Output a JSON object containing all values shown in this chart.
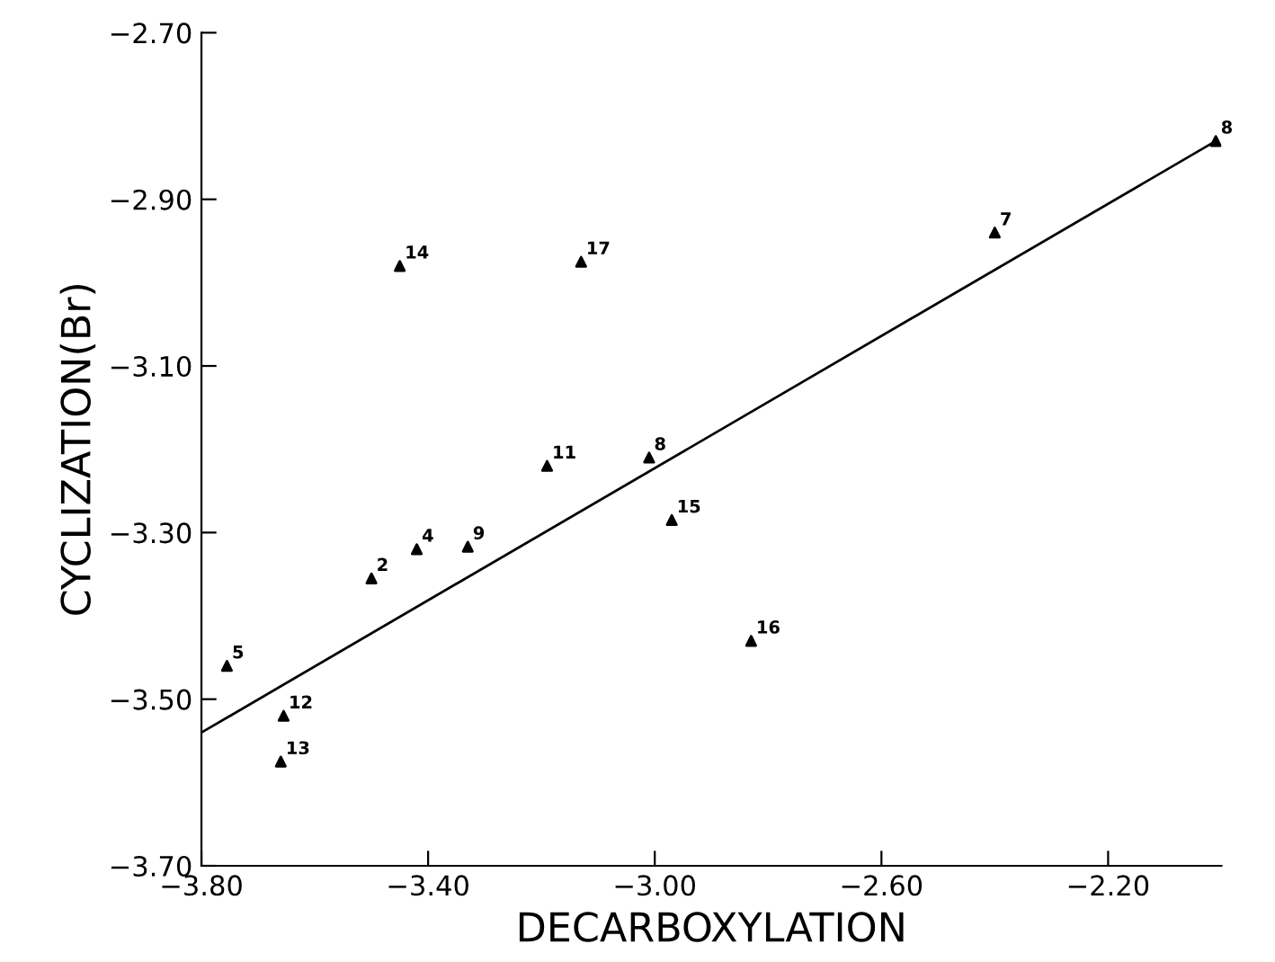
{
  "chart_data": {
    "type": "scatter",
    "xlabel": "DECARBOXYLATION",
    "ylabel": "CYCLIZATION(Br)",
    "xlim": [
      -3.8,
      -2.0
    ],
    "xticks": [
      {
        "value": -3.8,
        "label": "−3.80"
      },
      {
        "value": -3.4,
        "label": "−3.40"
      },
      {
        "value": -3.0,
        "label": "−3.00"
      },
      {
        "value": -2.6,
        "label": "−2.60"
      },
      {
        "value": -2.2,
        "label": "−2.20"
      }
    ],
    "ylim": [
      -3.7,
      -2.7
    ],
    "yticks": [
      {
        "value": -3.7,
        "label": "−3.70"
      },
      {
        "value": -3.5,
        "label": "−3.50"
      },
      {
        "value": -3.3,
        "label": "−3.30"
      },
      {
        "value": -3.1,
        "label": "−3.10"
      },
      {
        "value": -2.9,
        "label": "−2.90"
      },
      {
        "value": -2.7,
        "label": "−2.70"
      }
    ],
    "grid": false,
    "legend": false,
    "series": [
      {
        "color": "#000000",
        "marker": "triangle",
        "x": [
          -2.01,
          -2.4,
          -3.45,
          -3.13,
          -3.19,
          -3.01,
          -2.97,
          -3.33,
          -3.42,
          -3.5,
          -3.755,
          -3.655,
          -3.66,
          -2.83
        ],
        "values": [
          -2.83,
          -2.94,
          -2.98,
          -2.975,
          -3.22,
          -3.21,
          -3.285,
          -3.317,
          -3.32,
          -3.355,
          -3.46,
          -3.52,
          -3.575,
          -3.43
        ]
      },
      {
        "type": "line",
        "color": "#000000",
        "marker": "none",
        "line_style": "solid",
        "x": [
          -3.8,
          -2.01
        ],
        "values": [
          -3.54,
          -2.83
        ]
      }
    ],
    "annotations": [
      {
        "text": "8",
        "x": -2.01,
        "y": -2.83
      },
      {
        "text": "7",
        "x": -2.4,
        "y": -2.94
      },
      {
        "text": "14",
        "x": -3.45,
        "y": -2.98
      },
      {
        "text": "17",
        "x": -3.13,
        "y": -2.975
      },
      {
        "text": "11",
        "x": -3.19,
        "y": -3.22
      },
      {
        "text": "8",
        "x": -3.01,
        "y": -3.21
      },
      {
        "text": "15",
        "x": -2.97,
        "y": -3.285
      },
      {
        "text": "9",
        "x": -3.33,
        "y": -3.317
      },
      {
        "text": "4",
        "x": -3.42,
        "y": -3.32
      },
      {
        "text": "2",
        "x": -3.5,
        "y": -3.355
      },
      {
        "text": "5",
        "x": -3.755,
        "y": -3.46
      },
      {
        "text": "12",
        "x": -3.655,
        "y": -3.52
      },
      {
        "text": "13",
        "x": -3.66,
        "y": -3.575
      },
      {
        "text": "16",
        "x": -2.83,
        "y": -3.43
      }
    ]
  }
}
